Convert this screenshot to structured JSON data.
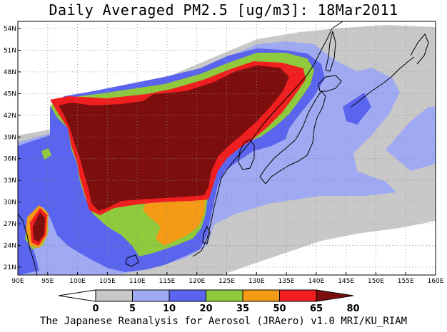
{
  "title": "Daily Averaged PM2.5 [ug/m3]: 18Mar2011",
  "credit": "The Japanese Reanalysis for Aerosol (JRAero) v1.0 MRI/KU_RIAM",
  "lon_ticks": [
    "90E",
    "95E",
    "100E",
    "105E",
    "110E",
    "115E",
    "120E",
    "125E",
    "130E",
    "135E",
    "140E",
    "145E",
    "150E",
    "155E",
    "160E"
  ],
  "lat_ticks": [
    "54N",
    "51N",
    "48N",
    "45N",
    "42N",
    "39N",
    "36N",
    "33N",
    "30N",
    "27N",
    "24N",
    "21N"
  ],
  "colorbar": {
    "labels": [
      "0",
      "5",
      "10",
      "20",
      "35",
      "50",
      "65",
      "80"
    ],
    "colors": [
      "#ffffff",
      "#c8c8c8",
      "#a0aaf2",
      "#5a64ee",
      "#8fca3c",
      "#f59a14",
      "#f01e1e",
      "#7d0e0e"
    ]
  },
  "layer_names": {
    "c5": "pm25-layer-5-10",
    "c10": "pm25-layer-10-20",
    "c20": "pm25-layer-20-35",
    "c35": "pm25-layer-35-50",
    "c50": "pm25-layer-50-65",
    "c65": "pm25-layer-65-80",
    "c80": "pm25-layer-80-plus"
  }
}
